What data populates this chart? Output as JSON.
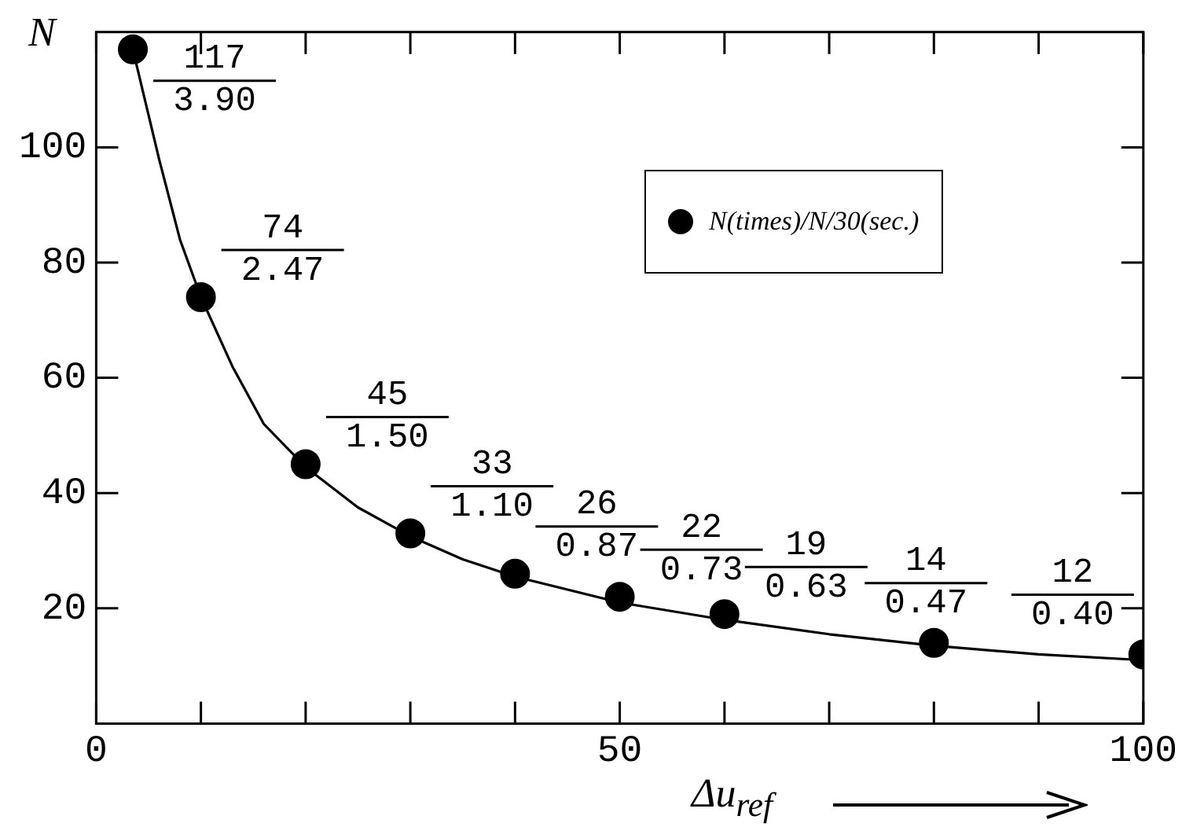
{
  "chart_data": {
    "type": "scatter",
    "xlabel": "Δu$_{ref}$",
    "ylabel": "N",
    "marker": "circle",
    "grid": false,
    "legend": "top right",
    "x": [
      3.5,
      10,
      20,
      30,
      40,
      50,
      60,
      80,
      100
    ],
    "series": [
      {
        "name": "N(times)/N/30(sec.)",
        "color": "#000000",
        "values": [
          117,
          74,
          45,
          33,
          26,
          22,
          19,
          14,
          12
        ],
        "value_labels": [
          "117",
          "74",
          "45",
          "33",
          "26",
          "22",
          "19",
          "14",
          "12"
        ]
      },
      {
        "type": "line",
        "marker": "none",
        "color": "#000000",
        "x": [
          3.5,
          6,
          8,
          10,
          13,
          16,
          20,
          25,
          30,
          35,
          40,
          50,
          60,
          70,
          80,
          90,
          100
        ],
        "values": [
          117,
          98,
          84,
          74,
          62,
          52,
          44.5,
          37.5,
          32.5,
          28.5,
          25.5,
          21,
          18,
          15.5,
          13.5,
          12,
          11
        ]
      }
    ],
    "annotations": [
      {
        "text": "3.90",
        "x": 3.5,
        "y": 117
      },
      {
        "text": "2.47",
        "x": 10,
        "y": 74
      },
      {
        "text": "1.50",
        "x": 20,
        "y": 45
      },
      {
        "text": "1.10",
        "x": 30,
        "y": 33
      },
      {
        "text": "0.87",
        "x": 40,
        "y": 26
      },
      {
        "text": "0.73",
        "x": 50,
        "y": 22
      },
      {
        "text": "0.63",
        "x": 60,
        "y": 19
      },
      {
        "text": "0.47",
        "x": 80,
        "y": 14
      },
      {
        "text": "0.40",
        "x": 100,
        "y": 12
      }
    ],
    "xlim": [
      0,
      100
    ],
    "ylim": [
      0,
      120
    ],
    "xticks": [
      0,
      {
        "value": 10,
        "label": null
      },
      {
        "value": 20,
        "label": null
      },
      {
        "value": 30,
        "label": null
      },
      {
        "value": 40,
        "label": null
      },
      50,
      {
        "value": 60,
        "label": null
      },
      {
        "value": 70,
        "label": null
      },
      {
        "value": 80,
        "label": null
      },
      {
        "value": 90,
        "label": null
      },
      100
    ],
    "yticks": [
      20,
      40,
      60,
      80,
      100
    ]
  }
}
